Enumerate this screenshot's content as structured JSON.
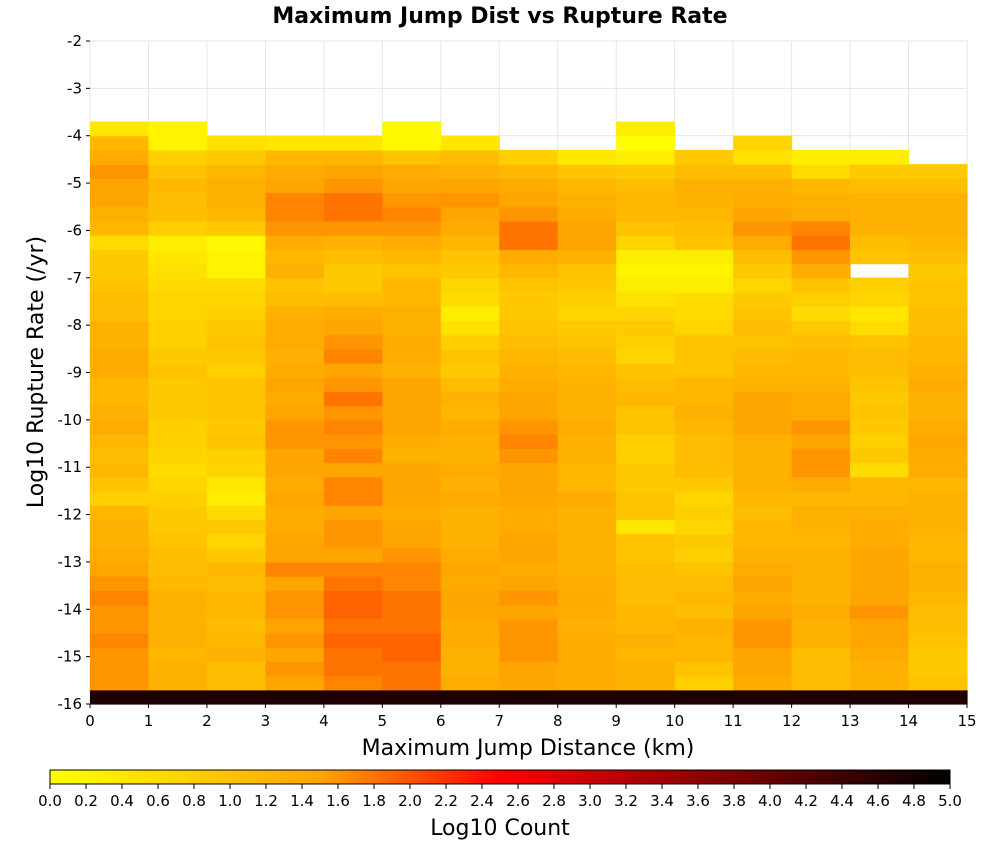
{
  "chart_data": {
    "type": "heatmap",
    "title": "Maximum Jump Dist vs Rupture Rate",
    "xlabel": "Maximum Jump Distance (km)",
    "ylabel": "Log10 Rupture Rate (/yr)",
    "xlim": [
      0,
      15
    ],
    "ylim": [
      -16,
      -2
    ],
    "x_ticks": [
      "0",
      "1",
      "2",
      "3",
      "4",
      "5",
      "6",
      "7",
      "8",
      "9",
      "10",
      "11",
      "12",
      "13",
      "14",
      "15"
    ],
    "y_ticks": [
      "-2",
      "-3",
      "-4",
      "-5",
      "-6",
      "-7",
      "-8",
      "-9",
      "-10",
      "-11",
      "-12",
      "-13",
      "-14",
      "-15",
      "-16"
    ],
    "x_bin_width": 1,
    "y_bin_width": 0.3,
    "colorbar": {
      "label": "Log10 Count",
      "range": [
        0,
        5
      ],
      "ticks": [
        "0.0",
        "0.2",
        "0.4",
        "0.6",
        "0.8",
        "1.0",
        "1.2",
        "1.4",
        "1.6",
        "1.8",
        "2.0",
        "2.2",
        "2.4",
        "2.6",
        "2.8",
        "3.0",
        "3.2",
        "3.4",
        "3.6",
        "3.8",
        "4.0",
        "4.2",
        "4.4",
        "4.6",
        "4.8",
        "5.0"
      ],
      "colors": [
        "#ffff00",
        "#ffa500",
        "#ff0000",
        "#000000"
      ]
    },
    "columns": [
      {
        "x": 0.5,
        "y_bottom": -16,
        "values": [
          4.7,
          1.6,
          1.6,
          1.6,
          1.7,
          1.6,
          1.6,
          1.7,
          1.6,
          1.5,
          1.4,
          1.3,
          1.3,
          1.2,
          0.8,
          1.0,
          1.2,
          1.1,
          1.2,
          1.4,
          1.3,
          1.2,
          1.2,
          1.4,
          1.4,
          1.3,
          1.3,
          1.1,
          1.1,
          1.0,
          0.9,
          0.9,
          0.6,
          1.2,
          1.3,
          1.5,
          1.5,
          1.6,
          1.4,
          1.2,
          0.4
        ]
      },
      {
        "x": 1.5,
        "y_bottom": -16,
        "values": [
          4.7,
          1.3,
          1.3,
          1.2,
          1.3,
          1.3,
          1.3,
          1.3,
          1.2,
          1.1,
          1.1,
          1.0,
          0.9,
          0.9,
          0.8,
          0.7,
          0.6,
          0.7,
          0.8,
          0.8,
          0.9,
          0.9,
          0.9,
          1.0,
          0.9,
          0.8,
          0.8,
          0.7,
          0.7,
          0.6,
          0.5,
          0.4,
          0.3,
          0.8,
          1.1,
          1.1,
          1.2,
          1.0,
          0.8,
          0.2,
          0.2
        ]
      },
      {
        "x": 2.5,
        "y_bottom": -16,
        "values": [
          4.7,
          1.1,
          1.1,
          1.3,
          1.2,
          1.1,
          1.2,
          1.2,
          1.1,
          1.2,
          0.9,
          0.7,
          0.9,
          0.6,
          0.3,
          0.4,
          0.7,
          0.8,
          1.0,
          0.9,
          1.0,
          1.0,
          1.0,
          0.8,
          0.9,
          1.0,
          0.9,
          0.8,
          0.7,
          0.6,
          0.2,
          0.2,
          0.1,
          0.9,
          1.2,
          1.3,
          1.3,
          1.2,
          0.9,
          0.5
        ]
      },
      {
        "x": 3.5,
        "y_bottom": -16,
        "values": [
          4.7,
          1.5,
          1.6,
          1.5,
          1.6,
          1.5,
          1.6,
          1.6,
          1.5,
          1.7,
          1.5,
          1.5,
          1.4,
          1.4,
          1.5,
          1.4,
          1.5,
          1.5,
          1.6,
          1.6,
          1.5,
          1.4,
          1.5,
          1.4,
          1.3,
          1.4,
          1.4,
          1.3,
          1.1,
          1.0,
          1.3,
          1.2,
          1.4,
          1.6,
          1.7,
          1.7,
          1.5,
          1.4,
          1.2,
          0.4
        ]
      },
      {
        "x": 4.5,
        "y_bottom": -16,
        "values": [
          4.7,
          1.7,
          1.8,
          1.8,
          1.9,
          1.8,
          1.9,
          1.9,
          1.8,
          1.7,
          1.5,
          1.6,
          1.6,
          1.5,
          1.7,
          1.7,
          1.5,
          1.7,
          1.6,
          1.7,
          1.6,
          1.8,
          1.6,
          1.5,
          1.7,
          1.6,
          1.5,
          1.4,
          1.1,
          0.9,
          0.9,
          1.1,
          1.3,
          1.6,
          1.8,
          1.8,
          1.6,
          1.5,
          1.2,
          0.4
        ]
      },
      {
        "x": 5.5,
        "y_bottom": -16,
        "values": [
          4.7,
          1.8,
          1.8,
          1.9,
          1.9,
          1.8,
          1.8,
          1.8,
          1.7,
          1.7,
          1.6,
          1.5,
          1.5,
          1.4,
          1.5,
          1.5,
          1.5,
          1.3,
          1.4,
          1.5,
          1.5,
          1.5,
          1.5,
          1.3,
          1.4,
          1.4,
          1.3,
          1.3,
          1.2,
          1.2,
          1.0,
          1.2,
          1.4,
          1.6,
          1.7,
          1.6,
          1.5,
          1.4,
          1.0,
          0.1,
          0.1
        ]
      },
      {
        "x": 6.5,
        "y_bottom": -16,
        "values": [
          4.7,
          1.4,
          1.3,
          1.3,
          1.4,
          1.4,
          1.5,
          1.5,
          1.4,
          1.5,
          1.4,
          1.3,
          1.3,
          1.3,
          1.4,
          1.3,
          1.4,
          1.3,
          1.3,
          1.4,
          1.2,
          1.3,
          1.1,
          0.9,
          1.0,
          0.8,
          0.5,
          0.3,
          0.6,
          0.7,
          0.9,
          1.0,
          1.2,
          1.4,
          1.5,
          1.6,
          1.5,
          1.3,
          1.1,
          0.4
        ]
      },
      {
        "x": 7.5,
        "y_bottom": -16,
        "values": [
          4.7,
          1.5,
          1.5,
          1.6,
          1.6,
          1.6,
          1.5,
          1.6,
          1.5,
          1.4,
          1.5,
          1.5,
          1.4,
          1.4,
          1.5,
          1.5,
          1.5,
          1.6,
          1.7,
          1.6,
          1.5,
          1.5,
          1.4,
          1.3,
          1.2,
          1.1,
          1.0,
          0.9,
          0.9,
          1.0,
          1.2,
          1.4,
          1.8,
          1.8,
          1.6,
          1.5,
          1.4,
          1.2,
          0.8
        ]
      },
      {
        "x": 8.5,
        "y_bottom": -16,
        "values": [
          4.7,
          1.4,
          1.4,
          1.4,
          1.4,
          1.3,
          1.4,
          1.4,
          1.4,
          1.3,
          1.3,
          1.3,
          1.3,
          1.3,
          1.4,
          1.2,
          1.2,
          1.3,
          1.3,
          1.4,
          1.3,
          1.3,
          1.3,
          1.2,
          1.1,
          1.0,
          0.9,
          0.7,
          0.8,
          0.9,
          1.0,
          1.3,
          1.5,
          1.5,
          1.4,
          1.3,
          1.2,
          1.0,
          0.4
        ]
      },
      {
        "x": 9.5,
        "y_bottom": -16,
        "values": [
          4.7,
          1.3,
          1.3,
          1.2,
          1.3,
          1.2,
          1.2,
          1.1,
          1.1,
          1.1,
          1.0,
          1.0,
          0.4,
          1.0,
          1.0,
          0.9,
          0.9,
          0.8,
          0.8,
          1.0,
          1.0,
          1.2,
          1.1,
          1.0,
          0.7,
          0.8,
          0.9,
          0.7,
          0.5,
          0.3,
          0.2,
          0.3,
          0.7,
          1.0,
          1.2,
          1.2,
          1.1,
          0.9,
          0.3,
          0.0,
          0.3
        ]
      },
      {
        "x": 10.5,
        "y_bottom": -16,
        "values": [
          4.7,
          0.8,
          1.0,
          1.2,
          1.2,
          1.3,
          1.1,
          1.2,
          1.1,
          1.0,
          0.8,
          0.9,
          0.7,
          0.8,
          0.7,
          0.9,
          1.1,
          1.1,
          1.1,
          1.2,
          1.3,
          1.2,
          1.2,
          1.0,
          1.0,
          1.0,
          0.7,
          0.6,
          0.6,
          0.3,
          0.2,
          0.3,
          1.0,
          1.1,
          1.2,
          1.3,
          1.3,
          1.1,
          0.9
        ]
      },
      {
        "x": 11.5,
        "y_bottom": -16,
        "values": [
          4.7,
          1.4,
          1.5,
          1.5,
          1.6,
          1.6,
          1.5,
          1.4,
          1.5,
          1.4,
          1.3,
          1.2,
          1.2,
          1.1,
          1.2,
          1.3,
          1.3,
          1.3,
          1.3,
          1.5,
          1.5,
          1.5,
          1.3,
          1.2,
          1.1,
          1.0,
          1.1,
          1.0,
          0.9,
          0.7,
          0.9,
          1.1,
          1.4,
          1.6,
          1.5,
          1.4,
          1.3,
          1.1,
          0.5,
          0.7
        ]
      },
      {
        "x": 12.5,
        "y_bottom": -16,
        "values": [
          4.7,
          1.1,
          1.1,
          1.1,
          1.3,
          1.3,
          1.4,
          1.3,
          1.3,
          1.3,
          1.3,
          1.2,
          1.3,
          1.3,
          1.2,
          1.4,
          1.6,
          1.6,
          1.5,
          1.6,
          1.4,
          1.4,
          1.3,
          1.2,
          1.2,
          1.1,
          0.9,
          0.6,
          0.8,
          1.0,
          1.4,
          1.6,
          1.8,
          1.7,
          1.4,
          1.3,
          1.2,
          0.6,
          0.3
        ]
      },
      {
        "x": 13.5,
        "y_bottom": -16,
        "values": [
          4.7,
          1.3,
          1.3,
          1.4,
          1.5,
          1.5,
          1.6,
          1.5,
          1.5,
          1.5,
          1.5,
          1.4,
          1.4,
          1.3,
          1.2,
          1.2,
          0.6,
          0.9,
          0.8,
          0.9,
          1.0,
          0.9,
          1.0,
          1.1,
          1.1,
          1.0,
          0.6,
          0.4,
          0.7,
          0.8,
          null,
          1.0,
          1.1,
          1.3,
          1.3,
          1.3,
          1.1,
          0.9,
          0.3
        ]
      },
      {
        "x": 14.5,
        "y_bottom": -16,
        "values": [
          4.7,
          1.0,
          0.9,
          0.9,
          1.0,
          1.1,
          1.1,
          1.2,
          1.3,
          1.3,
          1.2,
          1.2,
          1.3,
          1.3,
          1.3,
          1.2,
          1.4,
          1.4,
          1.5,
          1.4,
          1.3,
          1.3,
          1.4,
          1.3,
          1.2,
          1.2,
          1.1,
          1.1,
          1.0,
          1.0,
          0.9,
          1.1,
          1.2,
          1.3,
          1.3,
          1.3,
          1.1,
          0.9
        ]
      }
    ]
  }
}
